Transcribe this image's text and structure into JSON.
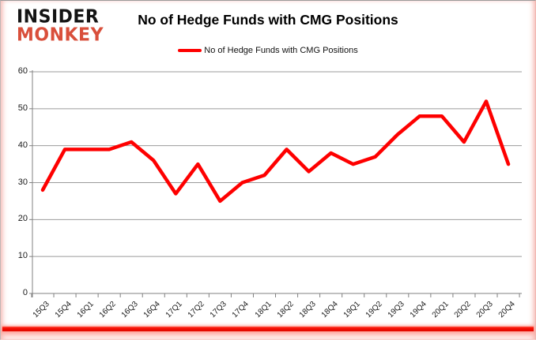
{
  "logo": {
    "line1": "INSIDER",
    "line2": "MONKEY",
    "line1_color": "#141414",
    "line2_color": "#d94f3b"
  },
  "header": {
    "title": "No of Hedge Funds with CMG Positions"
  },
  "legend": {
    "label": "No of Hedge Funds with CMG Positions",
    "line_color": "#fe0000"
  },
  "colors": {
    "series_red": "#fe0000",
    "gridline": "#9b9b9b",
    "axis": "#808080",
    "accent_bar": "#f50b00"
  },
  "chart_data": {
    "type": "line",
    "title": "No of Hedge Funds with CMG Positions",
    "categories": [
      "15Q3",
      "15Q4",
      "16Q1",
      "16Q2",
      "16Q3",
      "16Q4",
      "17Q1",
      "17Q2",
      "17Q3",
      "17Q4",
      "18Q1",
      "18Q2",
      "18Q3",
      "18Q4",
      "19Q1",
      "19Q2",
      "19Q3",
      "19Q4",
      "20Q1",
      "20Q2",
      "20Q3",
      "20Q4"
    ],
    "series": [
      {
        "name": "No of Hedge Funds with CMG Positions",
        "color": "#fe0000",
        "values": [
          28,
          39,
          39,
          39,
          41,
          36,
          27,
          35,
          25,
          30,
          32,
          39,
          33,
          38,
          35,
          37,
          43,
          48,
          48,
          41,
          52,
          35
        ]
      }
    ],
    "xlabel": "",
    "ylabel": "",
    "ylim": [
      0,
      60
    ],
    "yticks": [
      0,
      10,
      20,
      30,
      40,
      50,
      60
    ],
    "grid": true,
    "legend_position": "top"
  }
}
